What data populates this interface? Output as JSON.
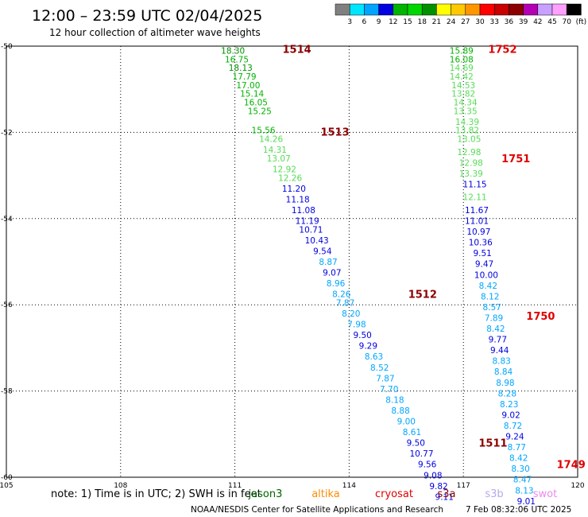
{
  "header": {
    "title": "12:00 – 23:59 UTC 02/04/2025",
    "subtitle": "12 hour collection of altimeter wave heights"
  },
  "colorbar": {
    "labels": [
      "3",
      "6",
      "9",
      "12",
      "15",
      "18",
      "21",
      "24",
      "27",
      "30",
      "33",
      "36",
      "39",
      "42",
      "45",
      "70",
      "(ft)"
    ],
    "colors": [
      "#808080",
      "#00e5ff",
      "#00a5ff",
      "#0000e0",
      "#00b400",
      "#00d700",
      "#009000",
      "#ffff00",
      "#ffc800",
      "#ff9600",
      "#ff0000",
      "#c80000",
      "#8c0000",
      "#b400b4",
      "#c8a0ff",
      "#ffa0ff",
      "#000000"
    ]
  },
  "footer": {
    "note": "note: 1) Time is in UTC; 2) SWH is in feet",
    "credit": "NOAA/NESDIS Center for Satellite Applications and Research",
    "timestamp": "7 Feb 08:32:06 UTC 2025"
  },
  "satellites": [
    {
      "name": "jason3",
      "color": "#006400"
    },
    {
      "name": "altika",
      "color": "#ff8c00"
    },
    {
      "name": "cryosat",
      "color": "#e00000"
    },
    {
      "name": "s3a",
      "color": "#8b0000"
    },
    {
      "name": "s3b",
      "color": "#b8a8e8"
    },
    {
      "name": "swot",
      "color": "#ee88ee"
    }
  ],
  "chart_data": {
    "type": "scatter",
    "title": "12:00 – 23:59 UTC 02/04/2025",
    "xlim": [
      105,
      120
    ],
    "ylim": [
      -60,
      -50
    ],
    "xticks": [
      "105",
      "108",
      "111",
      "114",
      "117",
      "120"
    ],
    "yticks": [
      "-50",
      "-52",
      "-54",
      "-56",
      "-58",
      "-60"
    ],
    "x_tick_values": [
      105,
      108,
      111,
      114,
      117,
      120
    ],
    "y_tick_values": [
      -50,
      -52,
      -54,
      -56,
      -58,
      -60
    ],
    "grid": true,
    "pass_labels": [
      {
        "text": "1514",
        "x": 112.25,
        "y": -50.06,
        "color": "#8b0000"
      },
      {
        "text": "1513",
        "x": 113.25,
        "y": -51.98,
        "color": "#8b0000"
      },
      {
        "text": "1512",
        "x": 115.55,
        "y": -55.75,
        "color": "#8b0000"
      },
      {
        "text": "1511",
        "x": 117.4,
        "y": -59.2,
        "color": "#8b0000"
      },
      {
        "text": "1752",
        "x": 117.65,
        "y": -50.06,
        "color": "#e00000"
      },
      {
        "text": "1751",
        "x": 118.0,
        "y": -52.6,
        "color": "#e00000"
      },
      {
        "text": "1750",
        "x": 118.65,
        "y": -56.25,
        "color": "#e00000"
      },
      {
        "text": "1749",
        "x": 119.45,
        "y": -59.7,
        "color": "#e00000"
      }
    ],
    "series": [
      {
        "name": "s3a",
        "points": [
          {
            "x": 110.95,
            "y": -50.1,
            "label": "18.30",
            "color": "#009000"
          },
          {
            "x": 111.05,
            "y": -50.3,
            "label": "16.75",
            "color": "#00b400"
          },
          {
            "x": 111.15,
            "y": -50.5,
            "label": "18.13",
            "color": "#009000"
          },
          {
            "x": 111.25,
            "y": -50.7,
            "label": "17.79",
            "color": "#00b400"
          },
          {
            "x": 111.35,
            "y": -50.9,
            "label": "17.00",
            "color": "#00b400"
          },
          {
            "x": 111.45,
            "y": -51.1,
            "label": "15.14",
            "color": "#00b400"
          },
          {
            "x": 111.55,
            "y": -51.3,
            "label": "16.05",
            "color": "#00b400"
          },
          {
            "x": 111.65,
            "y": -51.5,
            "label": "15.25",
            "color": "#00b400"
          },
          {
            "x": 111.75,
            "y": -51.95,
            "label": "15.56",
            "color": "#00b400"
          },
          {
            "x": 111.95,
            "y": -52.15,
            "label": "14.26",
            "color": "#55dd55"
          },
          {
            "x": 112.05,
            "y": -52.4,
            "label": "14.31",
            "color": "#55dd55"
          },
          {
            "x": 112.15,
            "y": -52.6,
            "label": "13.07",
            "color": "#55dd55"
          },
          {
            "x": 112.3,
            "y": -52.85,
            "label": "12.92",
            "color": "#55dd55"
          },
          {
            "x": 112.45,
            "y": -53.05,
            "label": "12.26",
            "color": "#55dd55"
          },
          {
            "x": 112.55,
            "y": -53.3,
            "label": "11.20",
            "color": "#0000e0"
          },
          {
            "x": 112.65,
            "y": -53.55,
            "label": "11.18",
            "color": "#0000e0"
          },
          {
            "x": 112.8,
            "y": -53.8,
            "label": "11.08",
            "color": "#0000e0"
          },
          {
            "x": 112.9,
            "y": -54.05,
            "label": "11.19",
            "color": "#0000e0"
          },
          {
            "x": 113.0,
            "y": -54.25,
            "label": "10.71",
            "color": "#0000e0"
          },
          {
            "x": 113.15,
            "y": -54.5,
            "label": "10.43",
            "color": "#0000e0"
          },
          {
            "x": 113.3,
            "y": -54.75,
            "label": "9.54",
            "color": "#0000e0"
          },
          {
            "x": 113.45,
            "y": -55.0,
            "label": "8.87",
            "color": "#00a5ff"
          },
          {
            "x": 113.55,
            "y": -55.25,
            "label": "9.07",
            "color": "#0000e0"
          },
          {
            "x": 113.65,
            "y": -55.5,
            "label": "8.96",
            "color": "#00a5ff"
          },
          {
            "x": 113.8,
            "y": -55.75,
            "label": "8.26",
            "color": "#00a5ff"
          },
          {
            "x": 113.9,
            "y": -55.95,
            "label": "7.87",
            "color": "#00a5ff"
          },
          {
            "x": 114.05,
            "y": -56.2,
            "label": "8.20",
            "color": "#00a5ff"
          },
          {
            "x": 114.2,
            "y": -56.45,
            "label": "7.98",
            "color": "#00a5ff"
          },
          {
            "x": 114.35,
            "y": -56.7,
            "label": "9.50",
            "color": "#0000e0"
          },
          {
            "x": 114.5,
            "y": -56.95,
            "label": "9.29",
            "color": "#0000e0"
          },
          {
            "x": 114.65,
            "y": -57.2,
            "label": "8.63",
            "color": "#00a5ff"
          },
          {
            "x": 114.8,
            "y": -57.45,
            "label": "8.52",
            "color": "#00a5ff"
          },
          {
            "x": 114.95,
            "y": -57.7,
            "label": "7.87",
            "color": "#00a5ff"
          },
          {
            "x": 115.05,
            "y": -57.95,
            "label": "7.70",
            "color": "#00a5ff"
          },
          {
            "x": 115.2,
            "y": -58.2,
            "label": "8.18",
            "color": "#00a5ff"
          },
          {
            "x": 115.35,
            "y": -58.45,
            "label": "8.88",
            "color": "#00a5ff"
          },
          {
            "x": 115.5,
            "y": -58.7,
            "label": "9.00",
            "color": "#00a5ff"
          },
          {
            "x": 115.65,
            "y": -58.95,
            "label": "8.61",
            "color": "#00a5ff"
          },
          {
            "x": 115.75,
            "y": -59.2,
            "label": "9.50",
            "color": "#0000e0"
          },
          {
            "x": 115.9,
            "y": -59.45,
            "label": "10.77",
            "color": "#0000e0"
          },
          {
            "x": 116.05,
            "y": -59.7,
            "label": "9.56",
            "color": "#0000e0"
          },
          {
            "x": 116.2,
            "y": -59.95,
            "label": "9.08",
            "color": "#0000e0"
          },
          {
            "x": 116.35,
            "y": -60.2,
            "label": "9.82",
            "color": "#0000e0"
          },
          {
            "x": 116.5,
            "y": -60.45,
            "label": "9.11",
            "color": "#0000e0"
          }
        ]
      },
      {
        "name": "cryosat",
        "points": [
          {
            "x": 116.95,
            "y": -50.1,
            "label": "15.89",
            "color": "#00b400"
          },
          {
            "x": 116.95,
            "y": -50.3,
            "label": "16.08",
            "color": "#00b400"
          },
          {
            "x": 116.95,
            "y": -50.5,
            "label": "14.69",
            "color": "#55dd55"
          },
          {
            "x": 116.95,
            "y": -50.7,
            "label": "14.42",
            "color": "#55dd55"
          },
          {
            "x": 117.0,
            "y": -50.9,
            "label": "14.53",
            "color": "#55dd55"
          },
          {
            "x": 117.0,
            "y": -51.1,
            "label": "13.82",
            "color": "#55dd55"
          },
          {
            "x": 117.05,
            "y": -51.3,
            "label": "14.34",
            "color": "#55dd55"
          },
          {
            "x": 117.05,
            "y": -51.5,
            "label": "13.35",
            "color": "#55dd55"
          },
          {
            "x": 117.1,
            "y": -51.75,
            "label": "14.39",
            "color": "#55dd55"
          },
          {
            "x": 117.1,
            "y": -51.95,
            "label": "13.82",
            "color": "#55dd55"
          },
          {
            "x": 117.15,
            "y": -52.15,
            "label": "13.05",
            "color": "#55dd55"
          },
          {
            "x": 117.15,
            "y": -52.45,
            "label": "12.98",
            "color": "#55dd55"
          },
          {
            "x": 117.2,
            "y": -52.7,
            "label": "12.98",
            "color": "#55dd55"
          },
          {
            "x": 117.2,
            "y": -52.95,
            "label": "13.39",
            "color": "#55dd55"
          },
          {
            "x": 117.3,
            "y": -53.2,
            "label": "11.15",
            "color": "#0000e0"
          },
          {
            "x": 117.3,
            "y": -53.5,
            "label": "12.11",
            "color": "#55dd55"
          },
          {
            "x": 117.35,
            "y": -53.8,
            "label": "11.67",
            "color": "#0000e0"
          },
          {
            "x": 117.35,
            "y": -54.05,
            "label": "11.01",
            "color": "#0000e0"
          },
          {
            "x": 117.4,
            "y": -54.3,
            "label": "10.97",
            "color": "#0000e0"
          },
          {
            "x": 117.45,
            "y": -54.55,
            "label": "10.36",
            "color": "#0000e0"
          },
          {
            "x": 117.5,
            "y": -54.8,
            "label": "9.51",
            "color": "#0000e0"
          },
          {
            "x": 117.55,
            "y": -55.05,
            "label": "9.47",
            "color": "#0000e0"
          },
          {
            "x": 117.6,
            "y": -55.3,
            "label": "10.00",
            "color": "#0000e0"
          },
          {
            "x": 117.65,
            "y": -55.55,
            "label": "8.42",
            "color": "#00a5ff"
          },
          {
            "x": 117.7,
            "y": -55.8,
            "label": "8.12",
            "color": "#00a5ff"
          },
          {
            "x": 117.75,
            "y": -56.05,
            "label": "8.57",
            "color": "#00a5ff"
          },
          {
            "x": 117.8,
            "y": -56.3,
            "label": "7.89",
            "color": "#00a5ff"
          },
          {
            "x": 117.85,
            "y": -56.55,
            "label": "8.42",
            "color": "#00a5ff"
          },
          {
            "x": 117.9,
            "y": -56.8,
            "label": "9.77",
            "color": "#0000e0"
          },
          {
            "x": 117.95,
            "y": -57.05,
            "label": "9.44",
            "color": "#0000e0"
          },
          {
            "x": 118.0,
            "y": -57.3,
            "label": "8.83",
            "color": "#00a5ff"
          },
          {
            "x": 118.05,
            "y": -57.55,
            "label": "8.84",
            "color": "#00a5ff"
          },
          {
            "x": 118.1,
            "y": -57.8,
            "label": "8.98",
            "color": "#00a5ff"
          },
          {
            "x": 118.15,
            "y": -58.05,
            "label": "8.28",
            "color": "#00a5ff"
          },
          {
            "x": 118.2,
            "y": -58.3,
            "label": "8.23",
            "color": "#00a5ff"
          },
          {
            "x": 118.25,
            "y": -58.55,
            "label": "9.02",
            "color": "#0000e0"
          },
          {
            "x": 118.3,
            "y": -58.8,
            "label": "8.72",
            "color": "#00a5ff"
          },
          {
            "x": 118.35,
            "y": -59.05,
            "label": "9.24",
            "color": "#0000e0"
          },
          {
            "x": 118.4,
            "y": -59.3,
            "label": "8.77",
            "color": "#00a5ff"
          },
          {
            "x": 118.45,
            "y": -59.55,
            "label": "8.42",
            "color": "#00a5ff"
          },
          {
            "x": 118.5,
            "y": -59.8,
            "label": "8.30",
            "color": "#00a5ff"
          },
          {
            "x": 118.55,
            "y": -60.05,
            "label": "8.47",
            "color": "#00a5ff"
          },
          {
            "x": 118.6,
            "y": -60.3,
            "label": "8.13",
            "color": "#00a5ff"
          },
          {
            "x": 118.65,
            "y": -60.55,
            "label": "9.01",
            "color": "#0000e0"
          }
        ]
      }
    ]
  }
}
